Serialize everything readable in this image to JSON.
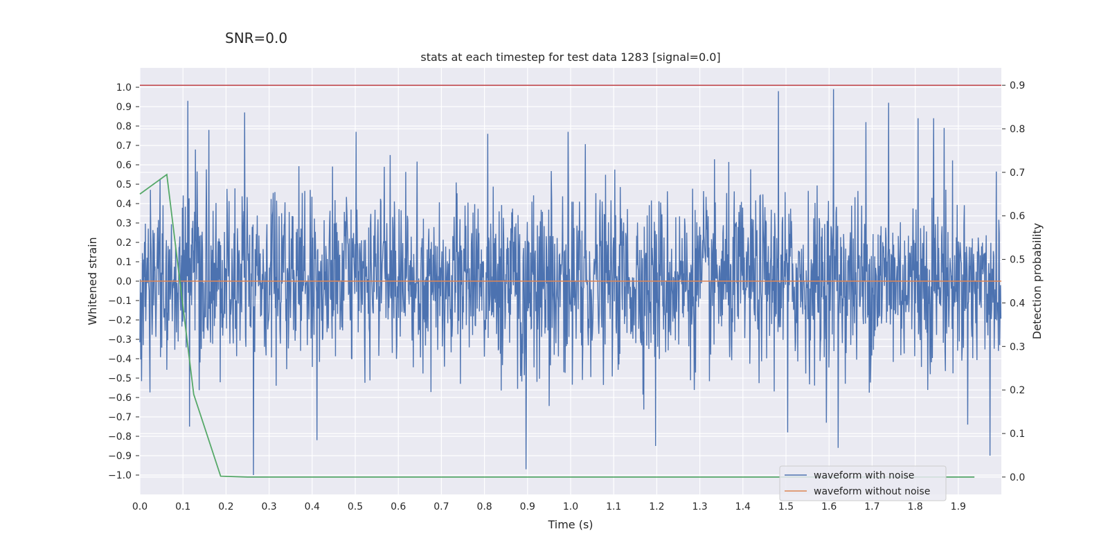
{
  "suptitle": "SNR=0.0",
  "chart_data": {
    "type": "line",
    "title": "stats at each timestep for test data 1283 [signal=0.0]",
    "xlabel": "Time (s)",
    "ylabel": "Whitened strain",
    "ylabel_right": "Detection probability",
    "xlim": [
      0.0,
      2.0
    ],
    "ylim": [
      -1.1,
      1.1
    ],
    "ylim_right": [
      -0.04,
      0.94
    ],
    "xticks": [
      "0.0",
      "0.1",
      "0.2",
      "0.3",
      "0.4",
      "0.5",
      "0.6",
      "0.7",
      "0.8",
      "0.9",
      "1.0",
      "1.1",
      "1.2",
      "1.3",
      "1.4",
      "1.5",
      "1.6",
      "1.7",
      "1.8",
      "1.9"
    ],
    "yticks": [
      "1.0",
      "0.9",
      "0.8",
      "0.7",
      "0.6",
      "0.5",
      "0.4",
      "0.3",
      "0.2",
      "0.1",
      "0.0",
      "−0.1",
      "−0.2",
      "−0.3",
      "−0.4",
      "−0.5",
      "−0.6",
      "−0.7",
      "−0.8",
      "−0.9",
      "−1.0"
    ],
    "yticks_right": [
      "0.9",
      "0.8",
      "0.7",
      "0.6",
      "0.5",
      "0.4",
      "0.3",
      "0.2",
      "0.1",
      "0.0"
    ],
    "grid": true,
    "legend_placement": "lower-right",
    "series": [
      {
        "name": "waveform with noise",
        "color": "#4c72b0",
        "axis": "left",
        "noise": {
          "samples": 2048,
          "std": 0.22,
          "min": -1.0,
          "max": 0.99
        },
        "peaks": [
          {
            "x": 0.111,
            "y": 0.93
          },
          {
            "x": 0.243,
            "y": 0.87
          },
          {
            "x": 0.16,
            "y": 0.78
          },
          {
            "x": 0.264,
            "y": -1.0
          },
          {
            "x": 0.897,
            "y": -0.97
          },
          {
            "x": 1.483,
            "y": 0.98
          },
          {
            "x": 1.611,
            "y": 0.99
          },
          {
            "x": 1.739,
            "y": 0.92
          },
          {
            "x": 1.198,
            "y": -0.85
          },
          {
            "x": 1.975,
            "y": -0.9
          },
          {
            "x": 0.411,
            "y": -0.82
          },
          {
            "x": 1.622,
            "y": -0.86
          },
          {
            "x": 0.502,
            "y": 0.77
          },
          {
            "x": 0.808,
            "y": 0.76
          },
          {
            "x": 0.995,
            "y": 0.77
          },
          {
            "x": 1.686,
            "y": 0.82
          },
          {
            "x": 1.808,
            "y": 0.84
          },
          {
            "x": 1.844,
            "y": 0.84
          },
          {
            "x": 1.868,
            "y": 0.79
          },
          {
            "x": 0.115,
            "y": -0.75
          },
          {
            "x": 1.505,
            "y": -0.78
          }
        ]
      },
      {
        "name": "waveform without noise",
        "color": "#dd8452",
        "axis": "left",
        "x": [
          0.0,
          2.0
        ],
        "y": [
          0.0,
          0.0
        ]
      },
      {
        "color": "#55a868",
        "axis": "right",
        "x": [
          0.0,
          0.0625,
          0.125,
          0.1875,
          0.25,
          0.3125,
          0.375,
          0.4375,
          0.5,
          0.5625,
          0.625,
          0.6875,
          0.75,
          0.8125,
          0.875,
          0.9375,
          1.0,
          1.0625,
          1.125,
          1.1875,
          1.25,
          1.3125,
          1.375,
          1.4375,
          1.5,
          1.5625,
          1.625,
          1.6875,
          1.75,
          1.8125,
          1.875,
          1.9375
        ],
        "y": [
          0.65,
          0.695,
          0.19,
          0.002,
          0.0,
          0.0,
          0.0,
          0.0,
          0.0,
          0.0,
          0.0,
          0.0,
          0.0,
          0.0,
          0.0,
          0.0,
          0.0,
          0.0,
          0.0,
          0.0,
          0.0,
          0.0,
          0.0,
          0.0,
          0.0,
          0.0,
          0.0,
          0.0,
          0.0,
          0.0,
          0.0,
          0.0
        ]
      }
    ],
    "hlines": [
      {
        "y": 0.9,
        "axis": "right",
        "color": "#c44e52"
      }
    ]
  }
}
